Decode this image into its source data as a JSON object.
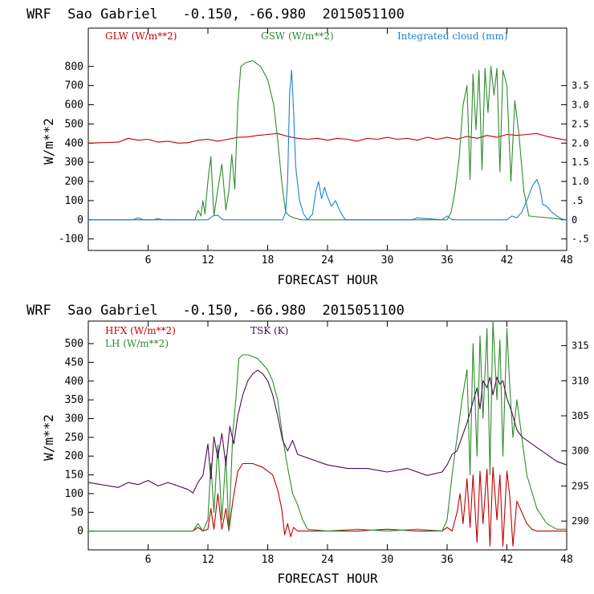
{
  "colors": {
    "red": "#c00000",
    "green": "#2e8b2e",
    "blue": "#1e7fd0",
    "purple": "#4a0e4e"
  },
  "chart_data": [
    {
      "type": "line",
      "title": "WRF  Sao Gabriel   -0.150, -66.980  2015051100",
      "xlabel": "FORECAST HOUR",
      "ylabel": "W/m**2",
      "xlim": [
        0,
        48
      ],
      "xticks": [
        6,
        12,
        18,
        24,
        30,
        36,
        42,
        48
      ],
      "ylim": [
        -160,
        1000
      ],
      "yticks": [
        -100,
        0,
        100,
        200,
        300,
        400,
        500,
        600,
        700,
        800
      ],
      "y2lim": [
        -0.8,
        5.0
      ],
      "y2ticks": [
        -0.5,
        0,
        0.5,
        1.0,
        1.5,
        2.0,
        2.5,
        3.0,
        3.5
      ],
      "y2ticklabels": [
        "-.5",
        "0",
        ".5",
        "1.0",
        "1.5",
        "2.0",
        "2.5",
        "3.0",
        "3.5"
      ],
      "series": [
        {
          "name": "GLW (W/m**2)",
          "color": "red",
          "axis": "left",
          "x": [
            0,
            3,
            4,
            5,
            6,
            7,
            8,
            9,
            10,
            11,
            12,
            13,
            14,
            15,
            16,
            17,
            18,
            19,
            20,
            21,
            22,
            23,
            24,
            25,
            26,
            27,
            28,
            29,
            30,
            31,
            32,
            33,
            34,
            35,
            36,
            37,
            38,
            39,
            40,
            41,
            42,
            43,
            44,
            45,
            46,
            47,
            48
          ],
          "values": [
            400,
            405,
            425,
            415,
            420,
            405,
            410,
            400,
            402,
            415,
            420,
            410,
            420,
            430,
            432,
            440,
            445,
            450,
            435,
            425,
            420,
            425,
            415,
            425,
            420,
            410,
            425,
            420,
            430,
            420,
            425,
            415,
            430,
            420,
            430,
            420,
            435,
            425,
            440,
            430,
            445,
            440,
            445,
            450,
            435,
            425,
            415
          ]
        },
        {
          "name": "GSW (W/m**2)",
          "color": "green",
          "axis": "left",
          "x": [
            0,
            10.7,
            11,
            11.3,
            11.5,
            11.7,
            12,
            12.3,
            12.6,
            13,
            13.4,
            13.8,
            14.1,
            14.4,
            14.7,
            15,
            15.3,
            15.8,
            16.5,
            17.3,
            18,
            18.6,
            19,
            19.4,
            19.8,
            20.2,
            20.6,
            21,
            21.3,
            21.6,
            36,
            36.4,
            36.8,
            37.2,
            37.6,
            38,
            38.3,
            38.6,
            38.9,
            39.2,
            39.5,
            39.8,
            40.1,
            40.4,
            40.7,
            41,
            41.3,
            41.6,
            42,
            42.4,
            42.8,
            43.2,
            43.7,
            44.2,
            48
          ],
          "values": [
            0,
            0,
            50,
            20,
            100,
            30,
            200,
            330,
            20,
            160,
            290,
            50,
            150,
            340,
            160,
            600,
            800,
            820,
            830,
            800,
            730,
            600,
            420,
            200,
            40,
            20,
            10,
            5,
            0,
            0,
            0,
            40,
            150,
            320,
            600,
            700,
            210,
            760,
            470,
            780,
            260,
            790,
            560,
            800,
            650,
            790,
            250,
            780,
            700,
            200,
            620,
            450,
            150,
            20,
            0
          ]
        },
        {
          "name": "Integrated cloud (mm)",
          "color": "blue",
          "axis": "right",
          "x": [
            0,
            4.5,
            5,
            5.5,
            6.5,
            7,
            7.5,
            12,
            12.5,
            13,
            13.5,
            19.5,
            19.8,
            20,
            20.2,
            20.4,
            20.6,
            20.8,
            21.2,
            21.6,
            22,
            22.5,
            22.8,
            23.1,
            23.4,
            23.7,
            24,
            24.4,
            24.8,
            25.3,
            25.8,
            32.5,
            33,
            35.5,
            36,
            36.5,
            42,
            42.5,
            43,
            43.5,
            44,
            44.6,
            45,
            45.3,
            45.6,
            46,
            46.5,
            47,
            47.5,
            48
          ],
          "values": [
            0,
            0,
            0.05,
            0,
            0,
            0.03,
            0,
            0,
            0.1,
            0.12,
            0,
            0,
            0.2,
            1.0,
            3.3,
            3.9,
            2.8,
            1.4,
            0.5,
            0.15,
            0,
            0.15,
            0.7,
            1.0,
            0.55,
            0.85,
            0.6,
            0.35,
            0.5,
            0.2,
            0,
            0,
            0.05,
            0,
            0.1,
            0,
            0,
            0.1,
            0.05,
            0.2,
            0.5,
            0.9,
            1.05,
            0.85,
            0.4,
            0.35,
            0.2,
            0.1,
            0.02,
            0
          ]
        }
      ]
    },
    {
      "type": "line",
      "title": "WRF  Sao Gabriel   -0.150, -66.980  2015051100",
      "xlabel": "FORECAST HOUR",
      "ylabel": "W/m**2",
      "xlim": [
        0,
        48
      ],
      "xticks": [
        6,
        12,
        18,
        24,
        30,
        36,
        42,
        48
      ],
      "ylim": [
        -50,
        560
      ],
      "yticks": [
        0,
        50,
        100,
        150,
        200,
        250,
        300,
        350,
        400,
        450,
        500
      ],
      "y2lim": [
        285.9,
        318.5
      ],
      "y2ticks": [
        290,
        295,
        300,
        305,
        310,
        315
      ],
      "y2ticklabels": [
        "290",
        "295",
        "300",
        "305",
        "310",
        "315"
      ],
      "series": [
        {
          "name": "HFX (W/m**2)",
          "color": "red",
          "axis": "left",
          "x": [
            0,
            10.5,
            11,
            11.5,
            12,
            12.3,
            12.6,
            13,
            13.4,
            13.8,
            14.1,
            14.5,
            15,
            15.5,
            16.5,
            17.5,
            18.5,
            19,
            19.4,
            19.7,
            20,
            20.3,
            20.6,
            21,
            22,
            24,
            27,
            30,
            33,
            35.5,
            36,
            36.5,
            37,
            37.3,
            37.6,
            38,
            38.3,
            38.6,
            39,
            39.3,
            39.6,
            40,
            40.3,
            40.6,
            41,
            41.3,
            41.6,
            42,
            42.3,
            42.6,
            43,
            43.5,
            44,
            44.5,
            45,
            48
          ],
          "values": [
            0,
            0,
            10,
            0,
            5,
            60,
            5,
            100,
            5,
            60,
            0,
            80,
            160,
            180,
            180,
            170,
            150,
            110,
            60,
            -10,
            20,
            -15,
            10,
            0,
            0,
            0,
            0,
            5,
            0,
            0,
            10,
            0,
            50,
            100,
            20,
            140,
            10,
            150,
            -30,
            160,
            20,
            165,
            -40,
            170,
            30,
            150,
            -40,
            160,
            90,
            -40,
            80,
            50,
            20,
            5,
            0,
            0
          ]
        },
        {
          "name": "LH (W/m**2)",
          "color": "green",
          "axis": "left",
          "x": [
            0,
            10.5,
            11,
            11.5,
            12,
            12.3,
            12.6,
            13,
            13.4,
            13.8,
            14.1,
            14.5,
            14.8,
            15.1,
            15.5,
            16,
            17,
            18,
            18.5,
            19,
            19.5,
            20,
            20.5,
            21,
            21.5,
            22,
            24,
            27,
            30,
            33,
            35.5,
            36,
            36.5,
            37,
            37.5,
            38,
            38.3,
            38.6,
            39,
            39.3,
            39.6,
            40,
            40.3,
            40.6,
            41,
            41.3,
            41.6,
            42,
            42.3,
            42.6,
            43,
            43.5,
            44,
            45,
            46,
            47,
            48
          ],
          "values": [
            0,
            0,
            20,
            0,
            30,
            180,
            50,
            230,
            30,
            200,
            0,
            260,
            350,
            460,
            470,
            470,
            460,
            430,
            400,
            350,
            250,
            170,
            100,
            70,
            30,
            5,
            0,
            5,
            0,
            5,
            0,
            30,
            150,
            250,
            350,
            430,
            150,
            500,
            200,
            520,
            300,
            540,
            150,
            560,
            350,
            510,
            200,
            540,
            380,
            250,
            350,
            250,
            150,
            60,
            20,
            5,
            5
          ]
        },
        {
          "name": "TSK (K)",
          "color": "purple",
          "axis": "right",
          "x": [
            0,
            3,
            4,
            5,
            6,
            7,
            8,
            9,
            10,
            10.5,
            11,
            11.5,
            12,
            12.3,
            12.6,
            13,
            13.4,
            13.8,
            14.2,
            14.6,
            15,
            15.5,
            16,
            16.5,
            17,
            17.5,
            18,
            18.5,
            19,
            19.5,
            20,
            20.5,
            21,
            22,
            24,
            26,
            28,
            30,
            32,
            34,
            35.5,
            36,
            36.5,
            37,
            37.5,
            38,
            38.3,
            38.6,
            39,
            39.3,
            39.6,
            40,
            40.3,
            40.6,
            41,
            41.3,
            41.6,
            42,
            42.5,
            43,
            43.5,
            44,
            45,
            46,
            47,
            48
          ],
          "values": [
            295.5,
            294.8,
            295.5,
            295.2,
            295.8,
            295.0,
            295.5,
            295.0,
            294.5,
            294.0,
            295.5,
            296.5,
            301.0,
            296.0,
            302.0,
            299.0,
            302.5,
            298.0,
            303.5,
            301.0,
            305.0,
            308.0,
            310.0,
            311.0,
            311.5,
            311.0,
            310.0,
            308.0,
            305.0,
            301.5,
            300.0,
            301.5,
            299.5,
            299.0,
            298.0,
            297.5,
            297.5,
            297.0,
            297.5,
            296.5,
            297.0,
            298.0,
            299.5,
            300.0,
            302.0,
            304.0,
            305.5,
            307.0,
            309.0,
            306.0,
            310.0,
            309.0,
            310.5,
            308.0,
            310.5,
            309.5,
            310.0,
            307.5,
            305.5,
            303.0,
            302.0,
            301.5,
            300.5,
            299.5,
            298.5,
            298.0
          ]
        }
      ]
    }
  ]
}
